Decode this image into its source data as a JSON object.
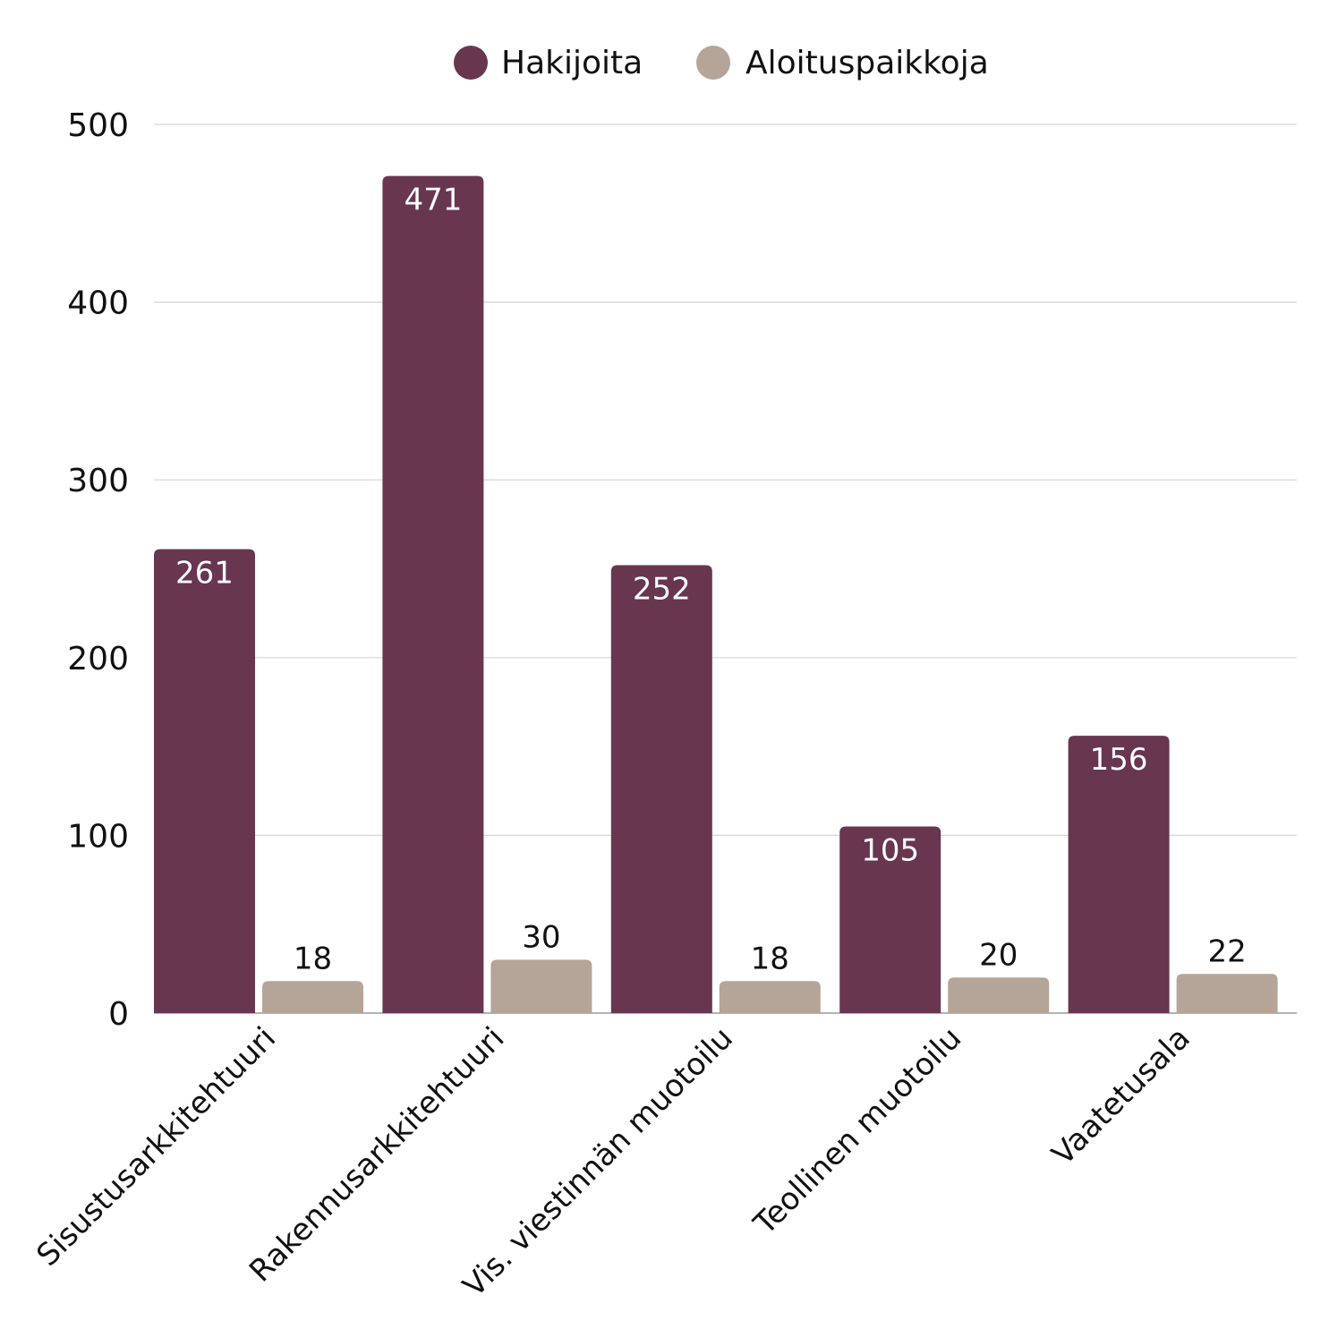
{
  "chart_data": {
    "type": "bar",
    "categories": [
      "Sisustusarkkitehtuuri",
      "Rakennusarkkitehtuuri",
      "Vis. viestinnän muotoilu",
      "Teollinen muotoilu",
      "Vaatetusala"
    ],
    "series": [
      {
        "name": "Hakijoita",
        "values": [
          261,
          471,
          252,
          105,
          156
        ],
        "color": "#68364f"
      },
      {
        "name": "Aloituspaikkoja",
        "values": [
          18,
          30,
          18,
          20,
          22
        ],
        "color": "#b5a498"
      }
    ],
    "yticks": [
      "0",
      "100",
      "200",
      "300",
      "400",
      "500"
    ],
    "ylim": [
      0,
      500
    ],
    "grid": true,
    "legend_position": "top-center",
    "data_labels": true
  }
}
